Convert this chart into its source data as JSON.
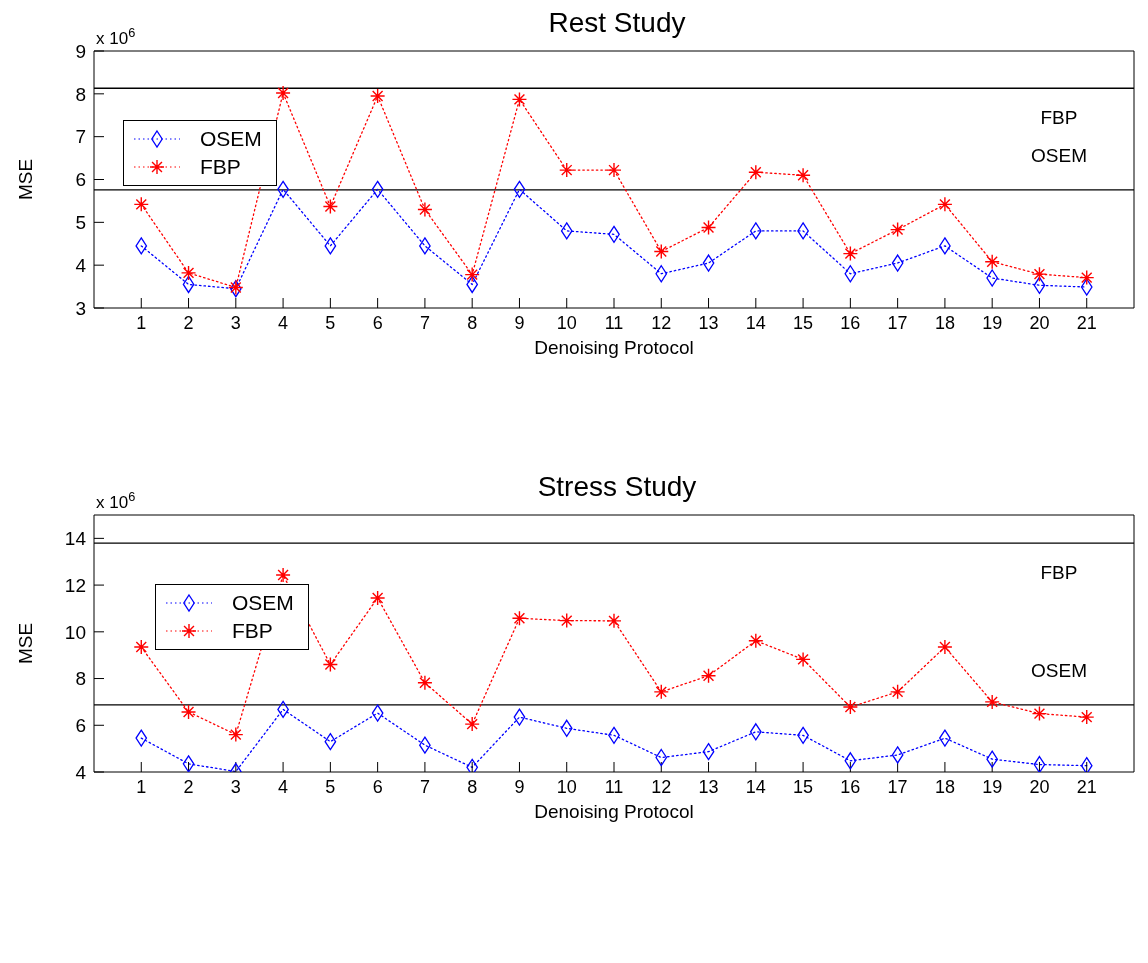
{
  "chart_data": [
    {
      "type": "line",
      "title": "Rest Study",
      "xlabel": "Denoising Protocol",
      "ylabel": "MSE",
      "annotations": [
        "x 10$^{6}$"
      ],
      "x": [
        1,
        2,
        3,
        4,
        5,
        6,
        7,
        8,
        9,
        10,
        11,
        12,
        13,
        14,
        15,
        16,
        17,
        18,
        19,
        20,
        21
      ],
      "series": [
        {
          "name": "OSEM",
          "color": "#0000ff",
          "marker": "diamond",
          "values": [
            4.45,
            3.55,
            3.45,
            5.77,
            4.45,
            5.77,
            4.45,
            3.55,
            5.77,
            4.8,
            4.72,
            3.8,
            4.05,
            4.8,
            4.8,
            3.8,
            4.05,
            4.45,
            3.7,
            3.53,
            3.49
          ]
        },
        {
          "name": "FBP",
          "color": "#ff0000",
          "marker": "cross",
          "values": [
            5.42,
            3.82,
            3.48,
            8.02,
            5.37,
            7.95,
            5.3,
            3.78,
            7.87,
            6.22,
            6.22,
            4.32,
            4.88,
            6.17,
            6.1,
            4.27,
            4.83,
            5.42,
            4.08,
            3.79,
            3.71
          ]
        }
      ],
      "line_style": "dotted",
      "xlim": [
        0,
        22
      ],
      "xticks": [
        1,
        2,
        3,
        4,
        5,
        6,
        7,
        8,
        9,
        10,
        11,
        12,
        13,
        14,
        15,
        16,
        17,
        18,
        19,
        20,
        21
      ],
      "ylim": [
        3,
        9
      ],
      "yticks": [
        3,
        4,
        5,
        6,
        7,
        8,
        9
      ],
      "grid": false,
      "legend": "left",
      "ref_lines": [
        {
          "axis": "y",
          "value": 8.13,
          "label": "FBP",
          "color": "#000000"
        },
        {
          "axis": "y",
          "value": 5.76,
          "label": "OSEM",
          "color": "#000000"
        }
      ]
    },
    {
      "type": "line",
      "title": "Stress Study",
      "xlabel": "Denoising Protocol",
      "ylabel": "MSE",
      "annotations": [
        "x 10$^{6}$"
      ],
      "x": [
        1,
        2,
        3,
        4,
        5,
        6,
        7,
        8,
        9,
        10,
        11,
        12,
        13,
        14,
        15,
        16,
        17,
        18,
        19,
        20,
        21
      ],
      "series": [
        {
          "name": "OSEM",
          "color": "#0000ff",
          "marker": "diamond",
          "values": [
            5.45,
            4.35,
            4.02,
            6.68,
            5.3,
            6.52,
            5.15,
            4.2,
            6.35,
            5.87,
            5.57,
            4.62,
            4.87,
            5.72,
            5.57,
            4.48,
            4.73,
            5.45,
            4.55,
            4.32,
            4.27
          ]
        },
        {
          "name": "FBP",
          "color": "#ff0000",
          "marker": "cross",
          "values": [
            9.35,
            6.57,
            5.6,
            12.43,
            8.6,
            11.45,
            7.82,
            6.05,
            10.58,
            10.48,
            10.47,
            7.43,
            8.12,
            9.62,
            8.82,
            6.78,
            7.43,
            9.35,
            7.0,
            6.5,
            6.35
          ]
        }
      ],
      "line_style": "dotted",
      "xlim": [
        0,
        22
      ],
      "xticks": [
        1,
        2,
        3,
        4,
        5,
        6,
        7,
        8,
        9,
        10,
        11,
        12,
        13,
        14,
        15,
        16,
        17,
        18,
        19,
        20,
        21
      ],
      "ylim": [
        4,
        15
      ],
      "yticks": [
        4,
        6,
        8,
        10,
        12,
        14
      ],
      "grid": false,
      "legend": "left",
      "ref_lines": [
        {
          "axis": "y",
          "value": 13.8,
          "label": "FBP",
          "color": "#000000"
        },
        {
          "axis": "y",
          "value": 6.87,
          "label": "OSEM",
          "color": "#000000"
        }
      ]
    }
  ]
}
